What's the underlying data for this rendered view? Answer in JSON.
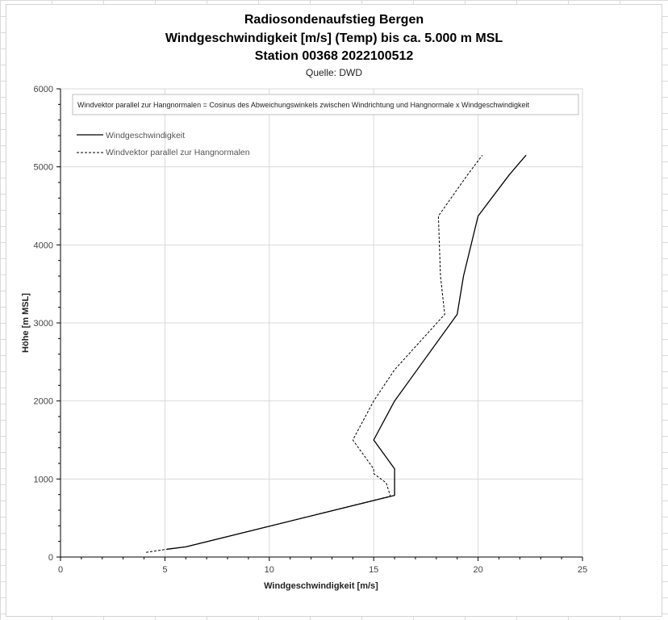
{
  "chart_data": {
    "type": "line",
    "title": "Radiosondenaufstieg Bergen",
    "subtitle": "Windgeschwindigkeit [m/s] (Temp) bis ca. 5.000 m MSL",
    "station": "Station 00368 2022100512",
    "source": "Quelle: DWD",
    "annotation": "Windvektor parallel zur Hangnormalen = Cosinus des Abweichungswinkels zwischen Windrichtung und Hangnormale x Windgeschwindigkeit",
    "xlabel": "Windgeschwindigkeit [m/s]",
    "ylabel": "Höhe [m MSL]",
    "xlim": [
      0,
      25
    ],
    "ylim": [
      0,
      6000
    ],
    "x_ticks": [
      "0",
      "5",
      "10",
      "15",
      "20",
      "25"
    ],
    "y_ticks": [
      "0",
      "1000",
      "2000",
      "3000",
      "4000",
      "5000",
      "6000"
    ],
    "grid": true,
    "legend_position": "top-left",
    "series": [
      {
        "name": "Windgeschwindigkeit",
        "style": "solid",
        "color": "#000000",
        "points": [
          [
            5.1,
            100
          ],
          [
            6.0,
            130
          ],
          [
            16.0,
            790
          ],
          [
            16.0,
            1130
          ],
          [
            15.0,
            1500
          ],
          [
            16.0,
            2000
          ],
          [
            19.0,
            3110
          ],
          [
            19.3,
            3600
          ],
          [
            20.0,
            4370
          ],
          [
            21.5,
            4900
          ],
          [
            22.3,
            5150
          ]
        ]
      },
      {
        "name": "Windvektor parallel zur Hangnormalen",
        "style": "dashed",
        "color": "#000000",
        "points": [
          [
            4.1,
            60
          ],
          [
            5.1,
            100
          ],
          [
            6.0,
            130
          ],
          [
            15.8,
            780
          ],
          [
            15.6,
            950
          ],
          [
            15.0,
            1070
          ],
          [
            15.0,
            1130
          ],
          [
            14.0,
            1500
          ],
          [
            15.0,
            2000
          ],
          [
            16.0,
            2400
          ],
          [
            18.4,
            3110
          ],
          [
            18.2,
            3600
          ],
          [
            18.1,
            4370
          ],
          [
            19.5,
            4900
          ],
          [
            20.2,
            5150
          ]
        ]
      }
    ]
  }
}
